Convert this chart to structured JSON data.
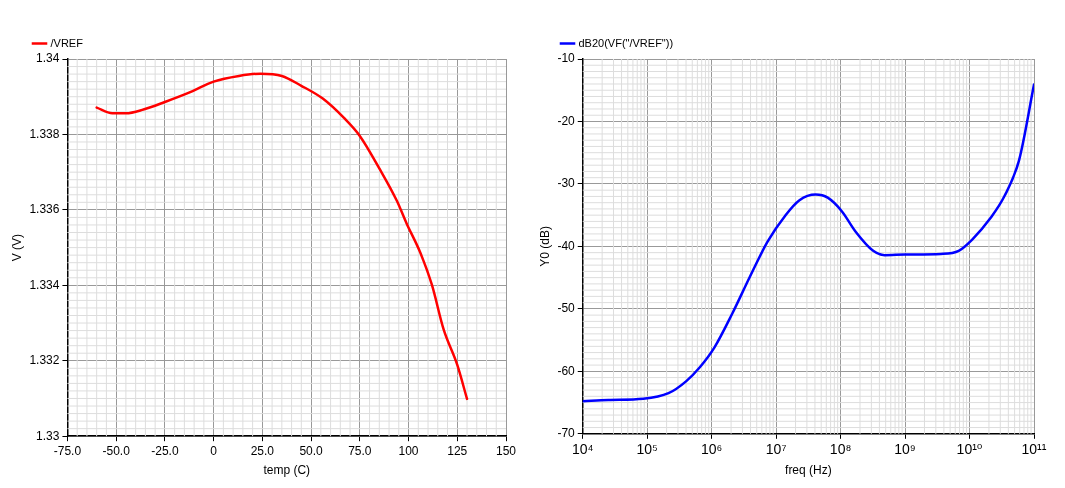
{
  "chart_data": [
    {
      "type": "line",
      "xlabel": "temp (C)",
      "ylabel": "V (V)",
      "legend": "top left",
      "grid": true,
      "series": [
        {
          "name": "/VREF",
          "color": "#ff0000",
          "x": [
            -60,
            -52,
            -45,
            -36,
            -25,
            -12,
            0,
            13,
            24,
            35,
            45,
            56,
            67,
            75,
            85,
            94,
            99,
            106,
            112,
            118,
            125,
            130
          ],
          "values": [
            1.33871,
            1.33856,
            1.33856,
            1.33866,
            1.33886,
            1.33912,
            1.3394,
            1.33955,
            1.33961,
            1.33955,
            1.33929,
            1.33895,
            1.33843,
            1.33796,
            1.3371,
            1.33624,
            1.33564,
            1.33487,
            1.33401,
            1.33283,
            1.33189,
            1.33099
          ]
        }
      ],
      "xlim": [
        -75,
        150
      ],
      "xticks": [
        {
          "value": -75,
          "label": "-75.0"
        },
        {
          "value": -50,
          "label": "-50.0"
        },
        {
          "value": -25,
          "label": "-25.0"
        },
        0,
        {
          "value": 25,
          "label": "25.0"
        },
        {
          "value": 50,
          "label": "50.0"
        },
        {
          "value": 75,
          "label": "75.0"
        },
        100,
        125,
        150
      ],
      "ylim": [
        1.33,
        1.34
      ],
      "yticks": [
        1.33,
        1.332,
        1.334,
        1.336,
        1.338,
        1.34
      ]
    },
    {
      "type": "line",
      "xlabel": "freq (Hz)",
      "ylabel": "Y0 (dB)",
      "legend": "top left",
      "grid": true,
      "log": "x",
      "series": [
        {
          "name": "dB20(VF(\"/VREF\"))",
          "color": "#0000ff",
          "x": [
            10000,
            25000,
            87000,
            214000,
            400000,
            660000,
            1100000,
            2100000,
            3900000,
            7400000,
            14000000,
            23000000,
            41000000,
            63000000,
            105000000,
            170000000,
            320000000,
            480000000,
            1000000000,
            3600000000,
            6800000000,
            11000000000,
            21000000000,
            35000000000,
            59000000000,
            100000000000
          ],
          "values": [
            -64.8,
            -64.6,
            -64.4,
            -63.5,
            -61.6,
            -59.3,
            -56.2,
            -50.7,
            -44.9,
            -39.2,
            -35,
            -32.6,
            -31.7,
            -32.2,
            -34.4,
            -37.6,
            -40.7,
            -41.4,
            -41.3,
            -41.2,
            -40.7,
            -38.9,
            -35.5,
            -31.9,
            -26.1,
            -14.1
          ]
        }
      ],
      "xlim": [
        10000,
        100000000000
      ],
      "xticks": [
        {
          "value": 10000,
          "label": "10⁴"
        },
        {
          "value": 100000,
          "label": "10⁵"
        },
        {
          "value": 1000000,
          "label": "10⁶"
        },
        {
          "value": 10000000,
          "label": "10⁷"
        },
        {
          "value": 100000000,
          "label": "10⁸"
        },
        {
          "value": 1000000000,
          "label": "10⁹"
        },
        {
          "value": 10000000000,
          "label": "10¹⁰"
        },
        {
          "value": 100000000000,
          "label": "10¹¹"
        }
      ],
      "ylim": [
        -70,
        -10
      ],
      "yticks": [
        -70,
        -60,
        -50,
        -40,
        -30,
        -20,
        -10
      ]
    }
  ]
}
